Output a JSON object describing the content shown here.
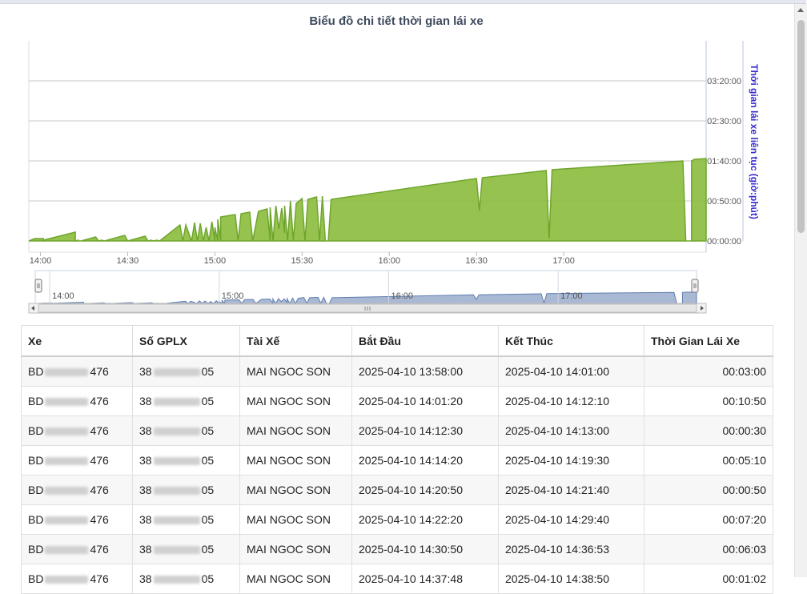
{
  "chart_data": {
    "type": "area",
    "title": "Biểu đồ chi tiết thời gian lái xe",
    "ylabel": "Thời gian lái xe liên tục (giờ:phút)",
    "y_ticks": [
      "00:00:00",
      "00:50:00",
      "01:40:00",
      "02:30:00",
      "03:20:00"
    ],
    "x_ticks": [
      "14:00",
      "14:30",
      "15:00",
      "15:30",
      "16:00",
      "16:30",
      "17:00"
    ],
    "navigator_ticks": [
      "14:00",
      "15:00",
      "16:00",
      "17:00"
    ],
    "xlim": [
      "13:56",
      "17:49"
    ],
    "ylim_minutes": [
      0,
      250
    ],
    "color": "#8bbc3d",
    "points": [
      [
        "13:56",
        0
      ],
      [
        "13:58",
        3
      ],
      [
        "14:01",
        3
      ],
      [
        "14:01",
        0
      ],
      [
        "14:01",
        1
      ],
      [
        "14:12",
        11
      ],
      [
        "14:12",
        0
      ],
      [
        "14:13",
        1
      ],
      [
        "14:13",
        0
      ],
      [
        "14:14",
        0
      ],
      [
        "14:19",
        5
      ],
      [
        "14:20",
        0
      ],
      [
        "14:21",
        1
      ],
      [
        "14:22",
        0
      ],
      [
        "14:29",
        7
      ],
      [
        "14:30",
        0
      ],
      [
        "14:36",
        6
      ],
      [
        "14:37",
        0
      ],
      [
        "14:38",
        1
      ],
      [
        "14:39",
        0
      ],
      [
        "14:40",
        1
      ],
      [
        "14:41",
        0
      ],
      [
        "14:48",
        20
      ],
      [
        "14:49",
        0
      ],
      [
        "14:50",
        20
      ],
      [
        "14:52",
        0
      ],
      [
        "14:53",
        23
      ],
      [
        "14:54",
        0
      ],
      [
        "14:55",
        22
      ],
      [
        "14:56",
        0
      ],
      [
        "14:57",
        17
      ],
      [
        "14:58",
        0
      ],
      [
        "14:59",
        24
      ],
      [
        "15:00",
        0
      ],
      [
        "15:00",
        17
      ],
      [
        "15:01",
        0
      ],
      [
        "15:01",
        27
      ],
      [
        "15:02",
        0
      ],
      [
        "15:02",
        30
      ],
      [
        "15:07",
        33
      ],
      [
        "15:08",
        0
      ],
      [
        "15:09",
        34
      ],
      [
        "15:12",
        36
      ],
      [
        "15:13",
        0
      ],
      [
        "15:15",
        37
      ],
      [
        "15:18",
        40
      ],
      [
        "15:19",
        0
      ],
      [
        "15:19",
        42
      ],
      [
        "15:20",
        0
      ],
      [
        "15:21",
        44
      ],
      [
        "15:22",
        15
      ],
      [
        "15:23",
        41
      ],
      [
        "15:24",
        10
      ],
      [
        "15:24",
        44
      ],
      [
        "15:25",
        0
      ],
      [
        "15:26",
        50
      ],
      [
        "15:27",
        0
      ],
      [
        "15:28",
        47
      ],
      [
        "15:30",
        53
      ],
      [
        "15:31",
        0
      ],
      [
        "15:32",
        52
      ],
      [
        "15:35",
        55
      ],
      [
        "15:36",
        0
      ],
      [
        "15:37",
        56
      ],
      [
        "15:38",
        0
      ],
      [
        "15:39",
        0
      ],
      [
        "15:40",
        52
      ],
      [
        "16:30",
        78
      ],
      [
        "16:31",
        38
      ],
      [
        "16:32",
        79
      ],
      [
        "16:54",
        88
      ],
      [
        "16:55",
        3
      ],
      [
        "16:56",
        89
      ],
      [
        "17:41",
        100
      ],
      [
        "17:42",
        0
      ],
      [
        "17:44",
        0
      ],
      [
        "17:44",
        100
      ],
      [
        "17:45",
        102
      ],
      [
        "17:49",
        103
      ]
    ]
  },
  "table": {
    "headers": [
      "Xe",
      "Số GPLX",
      "Tài Xế",
      "Bắt Đầu",
      "Kết Thúc",
      "Thời Gian Lái Xe"
    ],
    "rows": [
      [
        "BD",
        "476",
        "38",
        "05",
        "MAI NGOC SON",
        "2025-04-10 13:58:00",
        "2025-04-10 14:01:00",
        "00:03:00"
      ],
      [
        "BD",
        "476",
        "38",
        "05",
        "MAI NGOC SON",
        "2025-04-10 14:01:20",
        "2025-04-10 14:12:10",
        "00:10:50"
      ],
      [
        "BD",
        "476",
        "38",
        "05",
        "MAI NGOC SON",
        "2025-04-10 14:12:30",
        "2025-04-10 14:13:00",
        "00:00:30"
      ],
      [
        "BD",
        "476",
        "38",
        "05",
        "MAI NGOC SON",
        "2025-04-10 14:14:20",
        "2025-04-10 14:19:30",
        "00:05:10"
      ],
      [
        "BD",
        "476",
        "38",
        "05",
        "MAI NGOC SON",
        "2025-04-10 14:20:50",
        "2025-04-10 14:21:40",
        "00:00:50"
      ],
      [
        "BD",
        "476",
        "38",
        "05",
        "MAI NGOC SON",
        "2025-04-10 14:22:20",
        "2025-04-10 14:29:40",
        "00:07:20"
      ],
      [
        "BD",
        "476",
        "38",
        "05",
        "MAI NGOC SON",
        "2025-04-10 14:30:50",
        "2025-04-10 14:36:53",
        "00:06:03"
      ],
      [
        "BD",
        "476",
        "38",
        "05",
        "MAI NGOC SON",
        "2025-04-10 14:37:48",
        "2025-04-10 14:38:50",
        "00:01:02"
      ]
    ]
  }
}
